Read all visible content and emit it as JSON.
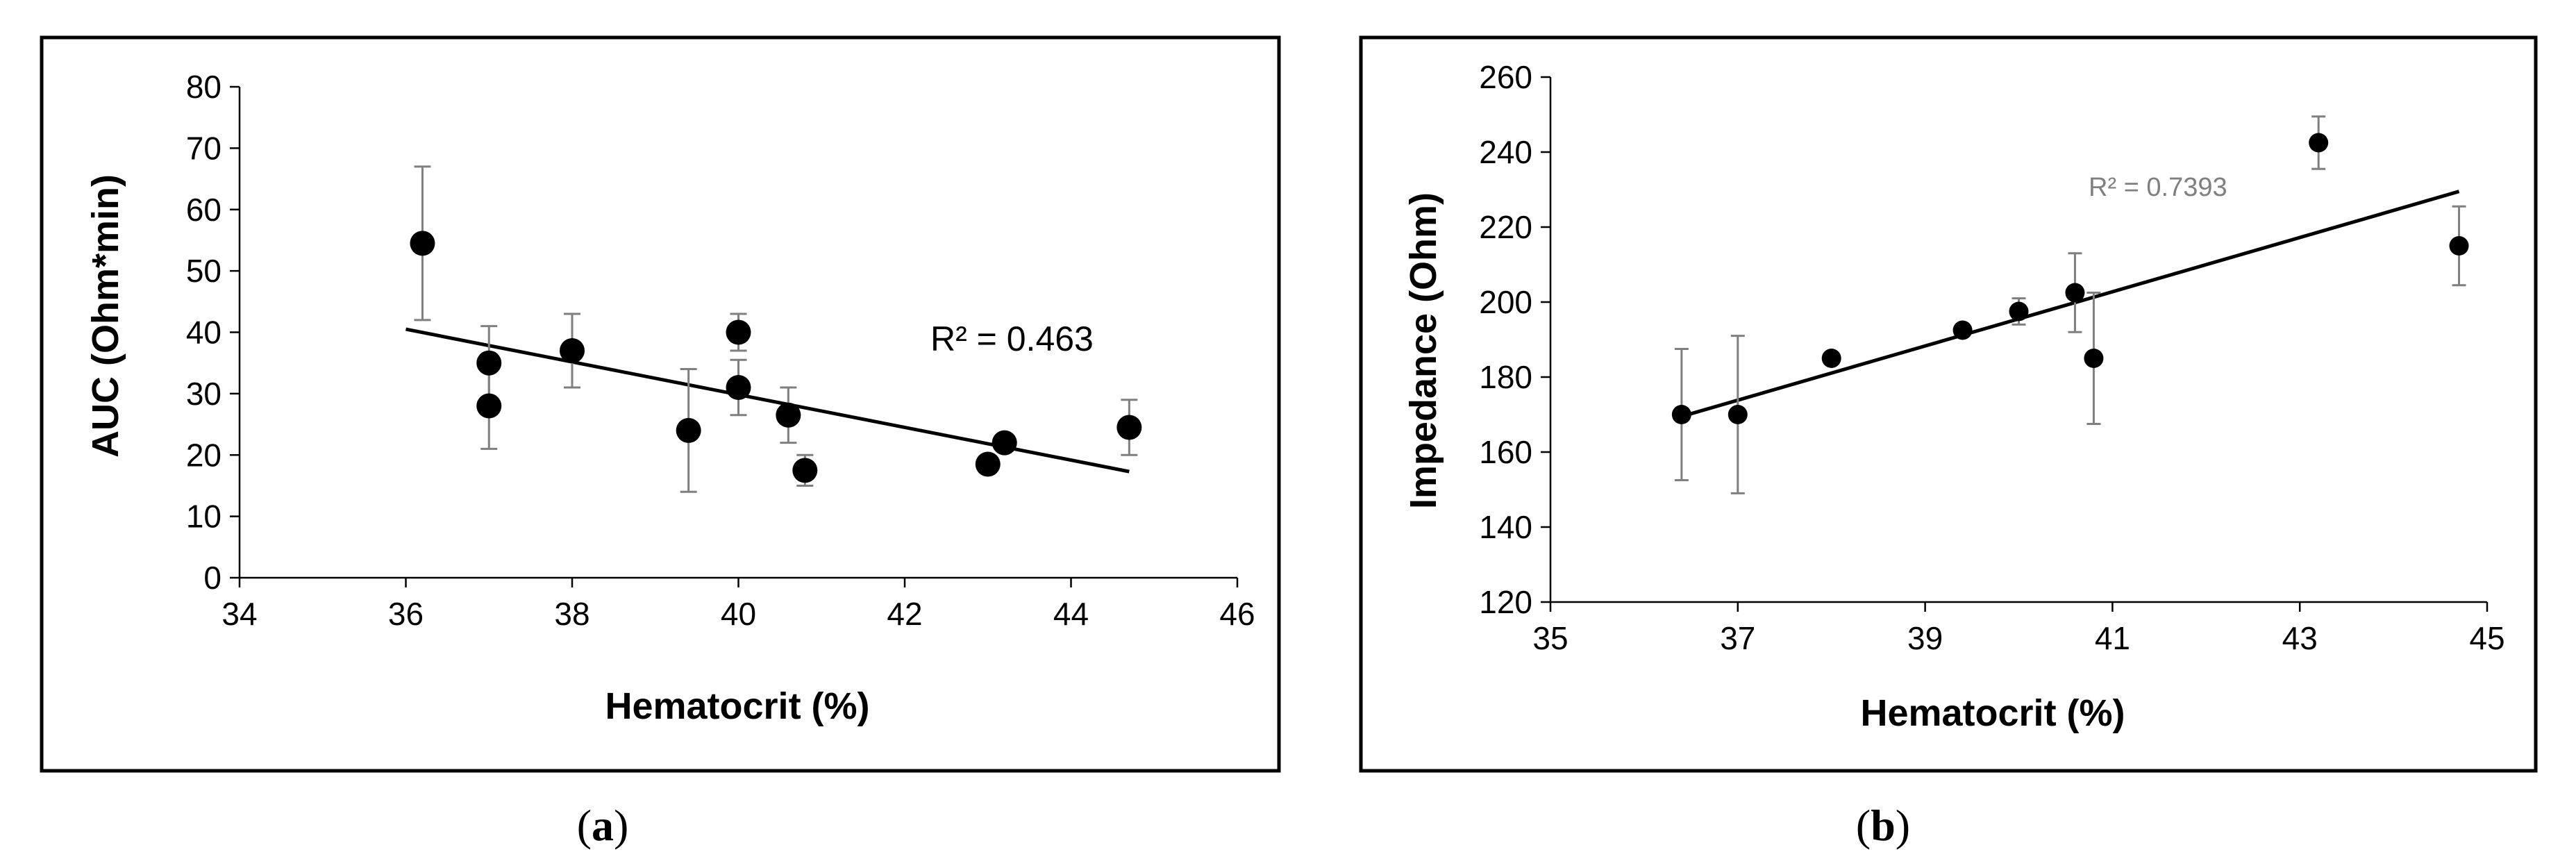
{
  "chart_data": [
    {
      "type": "scatter",
      "panel_label": "a",
      "title": "",
      "xlabel": "Hematocrit (%)",
      "ylabel": "AUC (Ohm*min)",
      "xlim": [
        34,
        46
      ],
      "ylim": [
        0,
        80
      ],
      "xticks": [
        34,
        36,
        38,
        40,
        42,
        44,
        46
      ],
      "yticks": [
        0,
        10,
        20,
        30,
        40,
        50,
        60,
        70,
        80
      ],
      "grid": false,
      "legend": "none",
      "point_color": "#000000",
      "errorbar_color": "#7f7f7f",
      "points": [
        {
          "x": 36.2,
          "y": 54.5,
          "err": 12.5
        },
        {
          "x": 37.0,
          "y": 35.0,
          "err": 6.0
        },
        {
          "x": 37.0,
          "y": 28.0,
          "err": 7.0
        },
        {
          "x": 38.0,
          "y": 37.0,
          "err": 6.0
        },
        {
          "x": 39.4,
          "y": 24.0,
          "err": 10.0
        },
        {
          "x": 40.0,
          "y": 40.0,
          "err": 3.0
        },
        {
          "x": 40.0,
          "y": 31.0,
          "err": 4.5
        },
        {
          "x": 40.6,
          "y": 26.5,
          "err": 4.5
        },
        {
          "x": 40.8,
          "y": 17.5,
          "err": 2.5
        },
        {
          "x": 43.0,
          "y": 18.5,
          "err": 0
        },
        {
          "x": 43.2,
          "y": 22.0,
          "err": 0
        },
        {
          "x": 44.7,
          "y": 24.5,
          "err": 4.5
        }
      ],
      "trendline": {
        "x": [
          36.0,
          44.7
        ],
        "y": [
          40.5,
          17.3
        ]
      },
      "annotation": "R² = 0.463"
    },
    {
      "type": "scatter",
      "panel_label": "b",
      "title": "",
      "xlabel": "Hematocrit (%)",
      "ylabel": "Impedance (Ohm)",
      "xlim": [
        35,
        45
      ],
      "ylim": [
        120,
        260
      ],
      "xticks": [
        35,
        37,
        39,
        41,
        43,
        45
      ],
      "yticks": [
        120,
        140,
        160,
        180,
        200,
        220,
        240,
        260
      ],
      "grid": false,
      "legend": "none",
      "point_color": "#000000",
      "errorbar_color": "#7f7f7f",
      "points": [
        {
          "x": 36.4,
          "y": 170,
          "err": 17.5
        },
        {
          "x": 37.0,
          "y": 170,
          "err": 21.0
        },
        {
          "x": 38.0,
          "y": 185,
          "err": 0
        },
        {
          "x": 39.4,
          "y": 192.5,
          "err": 0
        },
        {
          "x": 40.0,
          "y": 197.5,
          "err": 3.5
        },
        {
          "x": 40.6,
          "y": 202.5,
          "err": 10.5
        },
        {
          "x": 40.8,
          "y": 185,
          "err": 17.5
        },
        {
          "x": 43.2,
          "y": 242.5,
          "err": 7.0
        },
        {
          "x": 44.7,
          "y": 215,
          "err": 10.5
        }
      ],
      "trendline": {
        "x": [
          36.4,
          44.7
        ],
        "y": [
          169.5,
          229.5
        ]
      },
      "annotation": "R² = 0.7393"
    }
  ]
}
